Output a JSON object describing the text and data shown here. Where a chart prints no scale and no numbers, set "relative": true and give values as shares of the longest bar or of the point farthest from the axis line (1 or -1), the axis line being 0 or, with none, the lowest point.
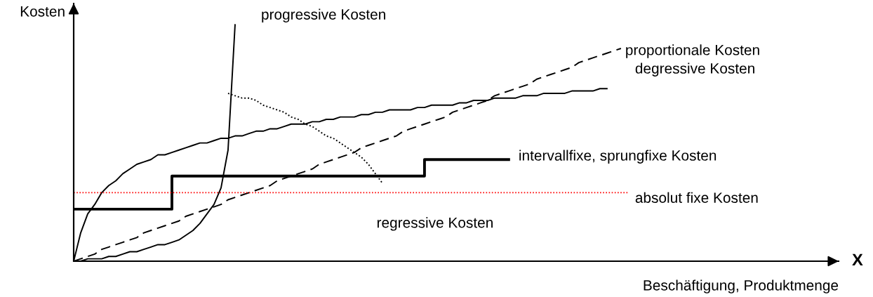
{
  "chart_data": {
    "type": "line",
    "relative": true,
    "tick_labels": false,
    "ylabel": "Kosten",
    "xlabel": "Beschäftigung, Produktmenge",
    "annotations": [
      "X"
    ],
    "categories": [
      null,
      null,
      null,
      null,
      null,
      null,
      null,
      null,
      null,
      null,
      null,
      null,
      null,
      null,
      null,
      null,
      null,
      null,
      null,
      null,
      null,
      null,
      null,
      null,
      null,
      null,
      null,
      null,
      null,
      null,
      null,
      null,
      null,
      null,
      null,
      null,
      null,
      null,
      null,
      null,
      null,
      null,
      null,
      null,
      null,
      null,
      null,
      null,
      null,
      null,
      null,
      null,
      null,
      null,
      null,
      null,
      null,
      null,
      null,
      null,
      null,
      null,
      null,
      null,
      null,
      null,
      null,
      null,
      null,
      null,
      null,
      null,
      null,
      null,
      null,
      null,
      null,
      null,
      null,
      null
    ],
    "series": [
      {
        "name": "progressive Kosten",
        "color": "#000000",
        "line_style": "solid",
        "values": [
          0,
          0.0,
          0.01,
          0.01,
          0.01,
          0.02,
          0.02,
          0.03,
          0.04,
          0.04,
          0.05,
          0.06,
          0.07,
          0.07,
          0.08,
          0.09,
          0.11,
          0.13,
          0.16,
          0.2,
          0.24,
          0.31,
          0.47,
          1.0,
          null,
          null,
          null,
          null,
          null,
          null,
          null,
          null,
          null,
          null,
          null,
          null,
          null,
          null,
          null,
          null,
          null,
          null,
          null,
          null,
          null,
          null,
          null,
          null,
          null,
          null,
          null,
          null,
          null,
          null,
          null,
          null,
          null,
          null,
          null,
          null,
          null,
          null,
          null,
          null,
          null,
          null,
          null,
          null,
          null,
          null,
          null,
          null,
          null,
          null,
          null,
          null,
          null,
          null,
          null,
          null
        ]
      },
      {
        "name": "proportionale Kosten",
        "color": "#000000",
        "line_style": "dashed",
        "values": [
          0,
          0.01,
          0.02,
          0.03,
          0.05,
          0.06,
          0.07,
          0.08,
          0.09,
          0.1,
          0.12,
          0.13,
          0.14,
          0.15,
          0.16,
          0.17,
          0.19,
          0.2,
          0.21,
          0.22,
          0.23,
          0.24,
          0.26,
          0.27,
          0.28,
          0.29,
          0.3,
          0.31,
          0.32,
          0.34,
          0.35,
          0.36,
          0.37,
          0.38,
          0.39,
          0.41,
          0.42,
          0.43,
          0.44,
          0.45,
          0.46,
          0.48,
          0.49,
          0.5,
          0.51,
          0.52,
          0.53,
          0.55,
          0.56,
          0.57,
          0.58,
          0.59,
          0.6,
          0.61,
          0.63,
          0.64,
          0.65,
          0.66,
          0.67,
          0.68,
          0.7,
          0.71,
          0.72,
          0.73,
          0.74,
          0.75,
          0.77,
          0.78,
          0.79,
          0.8,
          0.81,
          0.82,
          0.84,
          0.85,
          0.86,
          0.87,
          0.88,
          0.89,
          0.9,
          null
        ]
      },
      {
        "name": "degressive Kosten",
        "color": "#000000",
        "line_style": "solid",
        "values": [
          0,
          0.12,
          0.2,
          0.24,
          0.29,
          0.32,
          0.34,
          0.37,
          0.39,
          0.41,
          0.42,
          0.43,
          0.45,
          0.45,
          0.46,
          0.47,
          0.48,
          0.49,
          0.5,
          0.5,
          0.51,
          0.52,
          0.52,
          0.53,
          0.53,
          0.54,
          0.55,
          0.55,
          0.56,
          0.56,
          0.57,
          0.58,
          0.58,
          0.58,
          0.59,
          0.59,
          0.6,
          0.6,
          0.61,
          0.61,
          0.61,
          0.62,
          0.62,
          0.63,
          0.63,
          0.64,
          0.64,
          0.64,
          0.64,
          0.65,
          0.65,
          0.66,
          0.66,
          0.66,
          0.66,
          0.67,
          0.67,
          0.68,
          0.68,
          0.68,
          0.69,
          0.69,
          0.69,
          0.69,
          0.7,
          0.7,
          0.7,
          0.71,
          0.71,
          0.71,
          0.71,
          0.72,
          0.72,
          0.72,
          0.72,
          0.73,
          0.73,
          null,
          null,
          null
        ]
      },
      {
        "name": "intervallfixe, sprungfixe Kosten",
        "type": "step",
        "color": "#000000",
        "line_style": "solid",
        "values": [
          0.22,
          0.22,
          0.22,
          0.22,
          0.22,
          0.22,
          0.22,
          0.22,
          0.22,
          0.22,
          0.22,
          0.22,
          0.22,
          0.22,
          0.22,
          0.36,
          0.36,
          0.36,
          0.36,
          0.36,
          0.36,
          0.36,
          0.36,
          0.36,
          0.36,
          0.36,
          0.36,
          0.36,
          0.36,
          0.36,
          0.36,
          0.36,
          0.36,
          0.36,
          0.36,
          0.36,
          0.36,
          0.36,
          0.36,
          0.36,
          0.36,
          0.36,
          0.36,
          0.36,
          0.36,
          0.36,
          0.36,
          0.36,
          0.36,
          0.36,
          0.36,
          0.43,
          0.43,
          0.43,
          0.43,
          0.43,
          0.43,
          0.43,
          0.43,
          0.43,
          0.43,
          0.43,
          0.43,
          null,
          null,
          null,
          null,
          null,
          null,
          null,
          null,
          null,
          null,
          null,
          null,
          null,
          null,
          null,
          null,
          null
        ]
      },
      {
        "name": "regressive Kosten",
        "color": "#000000",
        "line_style": "dotted",
        "values": [
          null,
          null,
          null,
          null,
          null,
          null,
          null,
          null,
          null,
          null,
          null,
          null,
          null,
          null,
          null,
          null,
          null,
          null,
          null,
          null,
          null,
          null,
          0.71,
          0.7,
          0.69,
          0.69,
          0.68,
          0.66,
          0.65,
          0.64,
          0.63,
          0.61,
          0.6,
          0.58,
          0.57,
          0.55,
          0.53,
          0.52,
          0.5,
          0.48,
          0.46,
          0.44,
          0.41,
          0.37,
          0.33,
          null,
          null,
          null,
          null,
          null,
          null,
          null,
          null,
          null,
          null,
          null,
          null,
          null,
          null,
          null,
          null,
          null,
          null,
          null,
          null,
          null,
          null,
          null,
          null,
          null,
          null,
          null,
          null,
          null,
          null,
          null,
          null,
          null,
          null,
          null
        ]
      }
    ],
    "ref_lines": [
      {
        "axis": "y",
        "value": 0.29,
        "label": "absolut fixe Kosten",
        "color": "#ff0000",
        "line_style": "dotted"
      }
    ]
  }
}
